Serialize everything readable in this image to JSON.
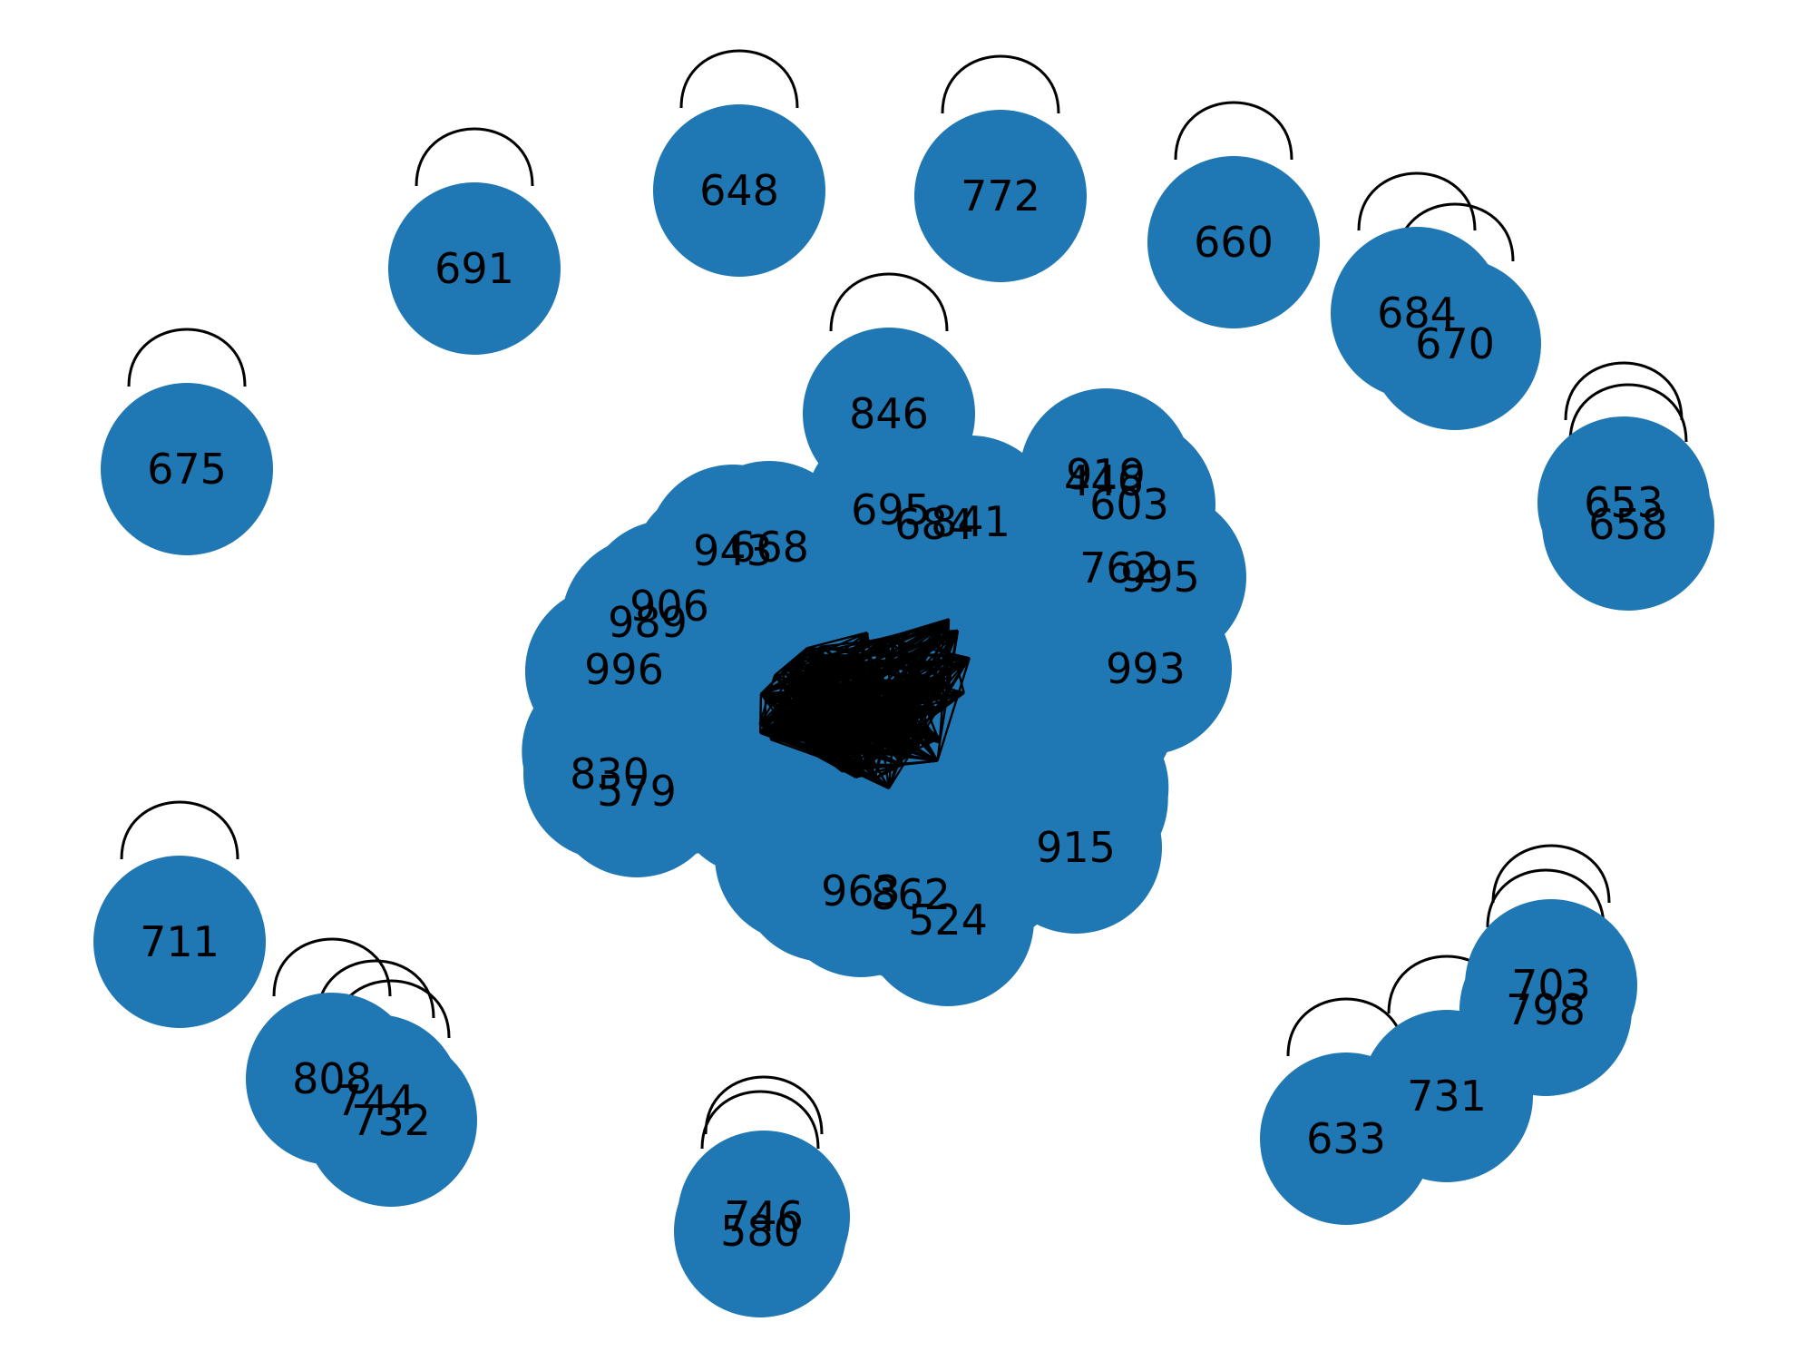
{
  "graph": {
    "node_color": "#1f77b4",
    "edge_color": "#000000",
    "label_color": "#000000",
    "background": "#ffffff",
    "isolated_nodes": [
      {
        "label": "648"
      },
      {
        "label": "772"
      },
      {
        "label": "691"
      },
      {
        "label": "660"
      },
      {
        "label": "684"
      },
      {
        "label": "670"
      },
      {
        "label": "675"
      },
      {
        "label": "846"
      },
      {
        "label": "653"
      },
      {
        "label": "658"
      },
      {
        "label": "711"
      },
      {
        "label": "703"
      },
      {
        "label": "798"
      },
      {
        "label": "731"
      },
      {
        "label": "633"
      },
      {
        "label": "808"
      },
      {
        "label": "744"
      },
      {
        "label": "732"
      },
      {
        "label": "746"
      },
      {
        "label": "580"
      }
    ],
    "cluster_nodes": [
      {
        "label": "919"
      },
      {
        "label": "446"
      },
      {
        "label": "603"
      },
      {
        "label": "762"
      },
      {
        "label": "995"
      },
      {
        "label": "993"
      },
      {
        "label": "915"
      },
      {
        "label": "524"
      },
      {
        "label": "862"
      },
      {
        "label": "963"
      },
      {
        "label": "830"
      },
      {
        "label": "579"
      },
      {
        "label": "996"
      },
      {
        "label": "989"
      },
      {
        "label": "695"
      },
      {
        "label": "684"
      },
      {
        "label": "668"
      },
      {
        "label": "943"
      },
      {
        "label": "906"
      },
      {
        "label": "841"
      }
    ]
  }
}
